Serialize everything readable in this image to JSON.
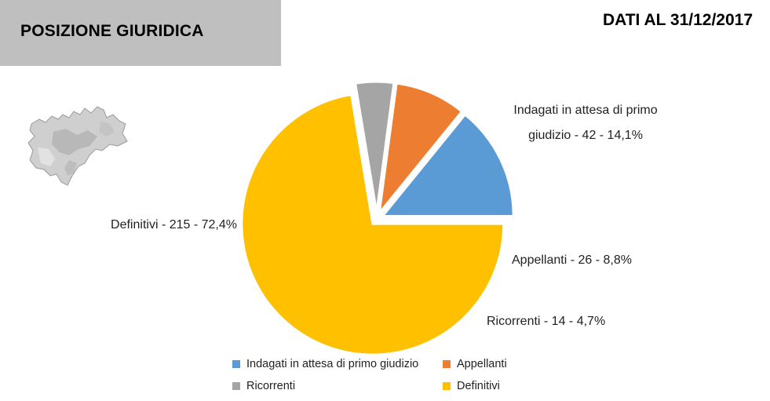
{
  "header": {
    "title": "POSIZIONE GIURIDICA",
    "date": "DATI AL 31/12/2017"
  },
  "map": {
    "icon": "trentino-region-map-icon"
  },
  "chart_data": {
    "type": "pie",
    "title": "POSIZIONE GIURIDICA",
    "slices": [
      {
        "name": "Indagati in attesa di primo giudizio",
        "value": 42,
        "percent": 14.1,
        "color": "#5b9bd5",
        "label_lines": [
          "Indagati in attesa di primo",
          "giudizio - 42 - 14,1%"
        ]
      },
      {
        "name": "Appellanti",
        "value": 26,
        "percent": 8.8,
        "color": "#ed7d31",
        "label_lines": [
          "Appellanti  - 26 - 8,8%"
        ]
      },
      {
        "name": "Ricorrenti",
        "value": 14,
        "percent": 4.7,
        "color": "#a5a5a5",
        "label_lines": [
          "Ricorrenti - 14 - 4,7%"
        ]
      },
      {
        "name": "Definitivi",
        "value": 215,
        "percent": 72.4,
        "color": "#ffc000",
        "label_lines": [
          "Definitivi - 215 - 72,4%"
        ]
      }
    ],
    "legend_placement": "bottom"
  }
}
